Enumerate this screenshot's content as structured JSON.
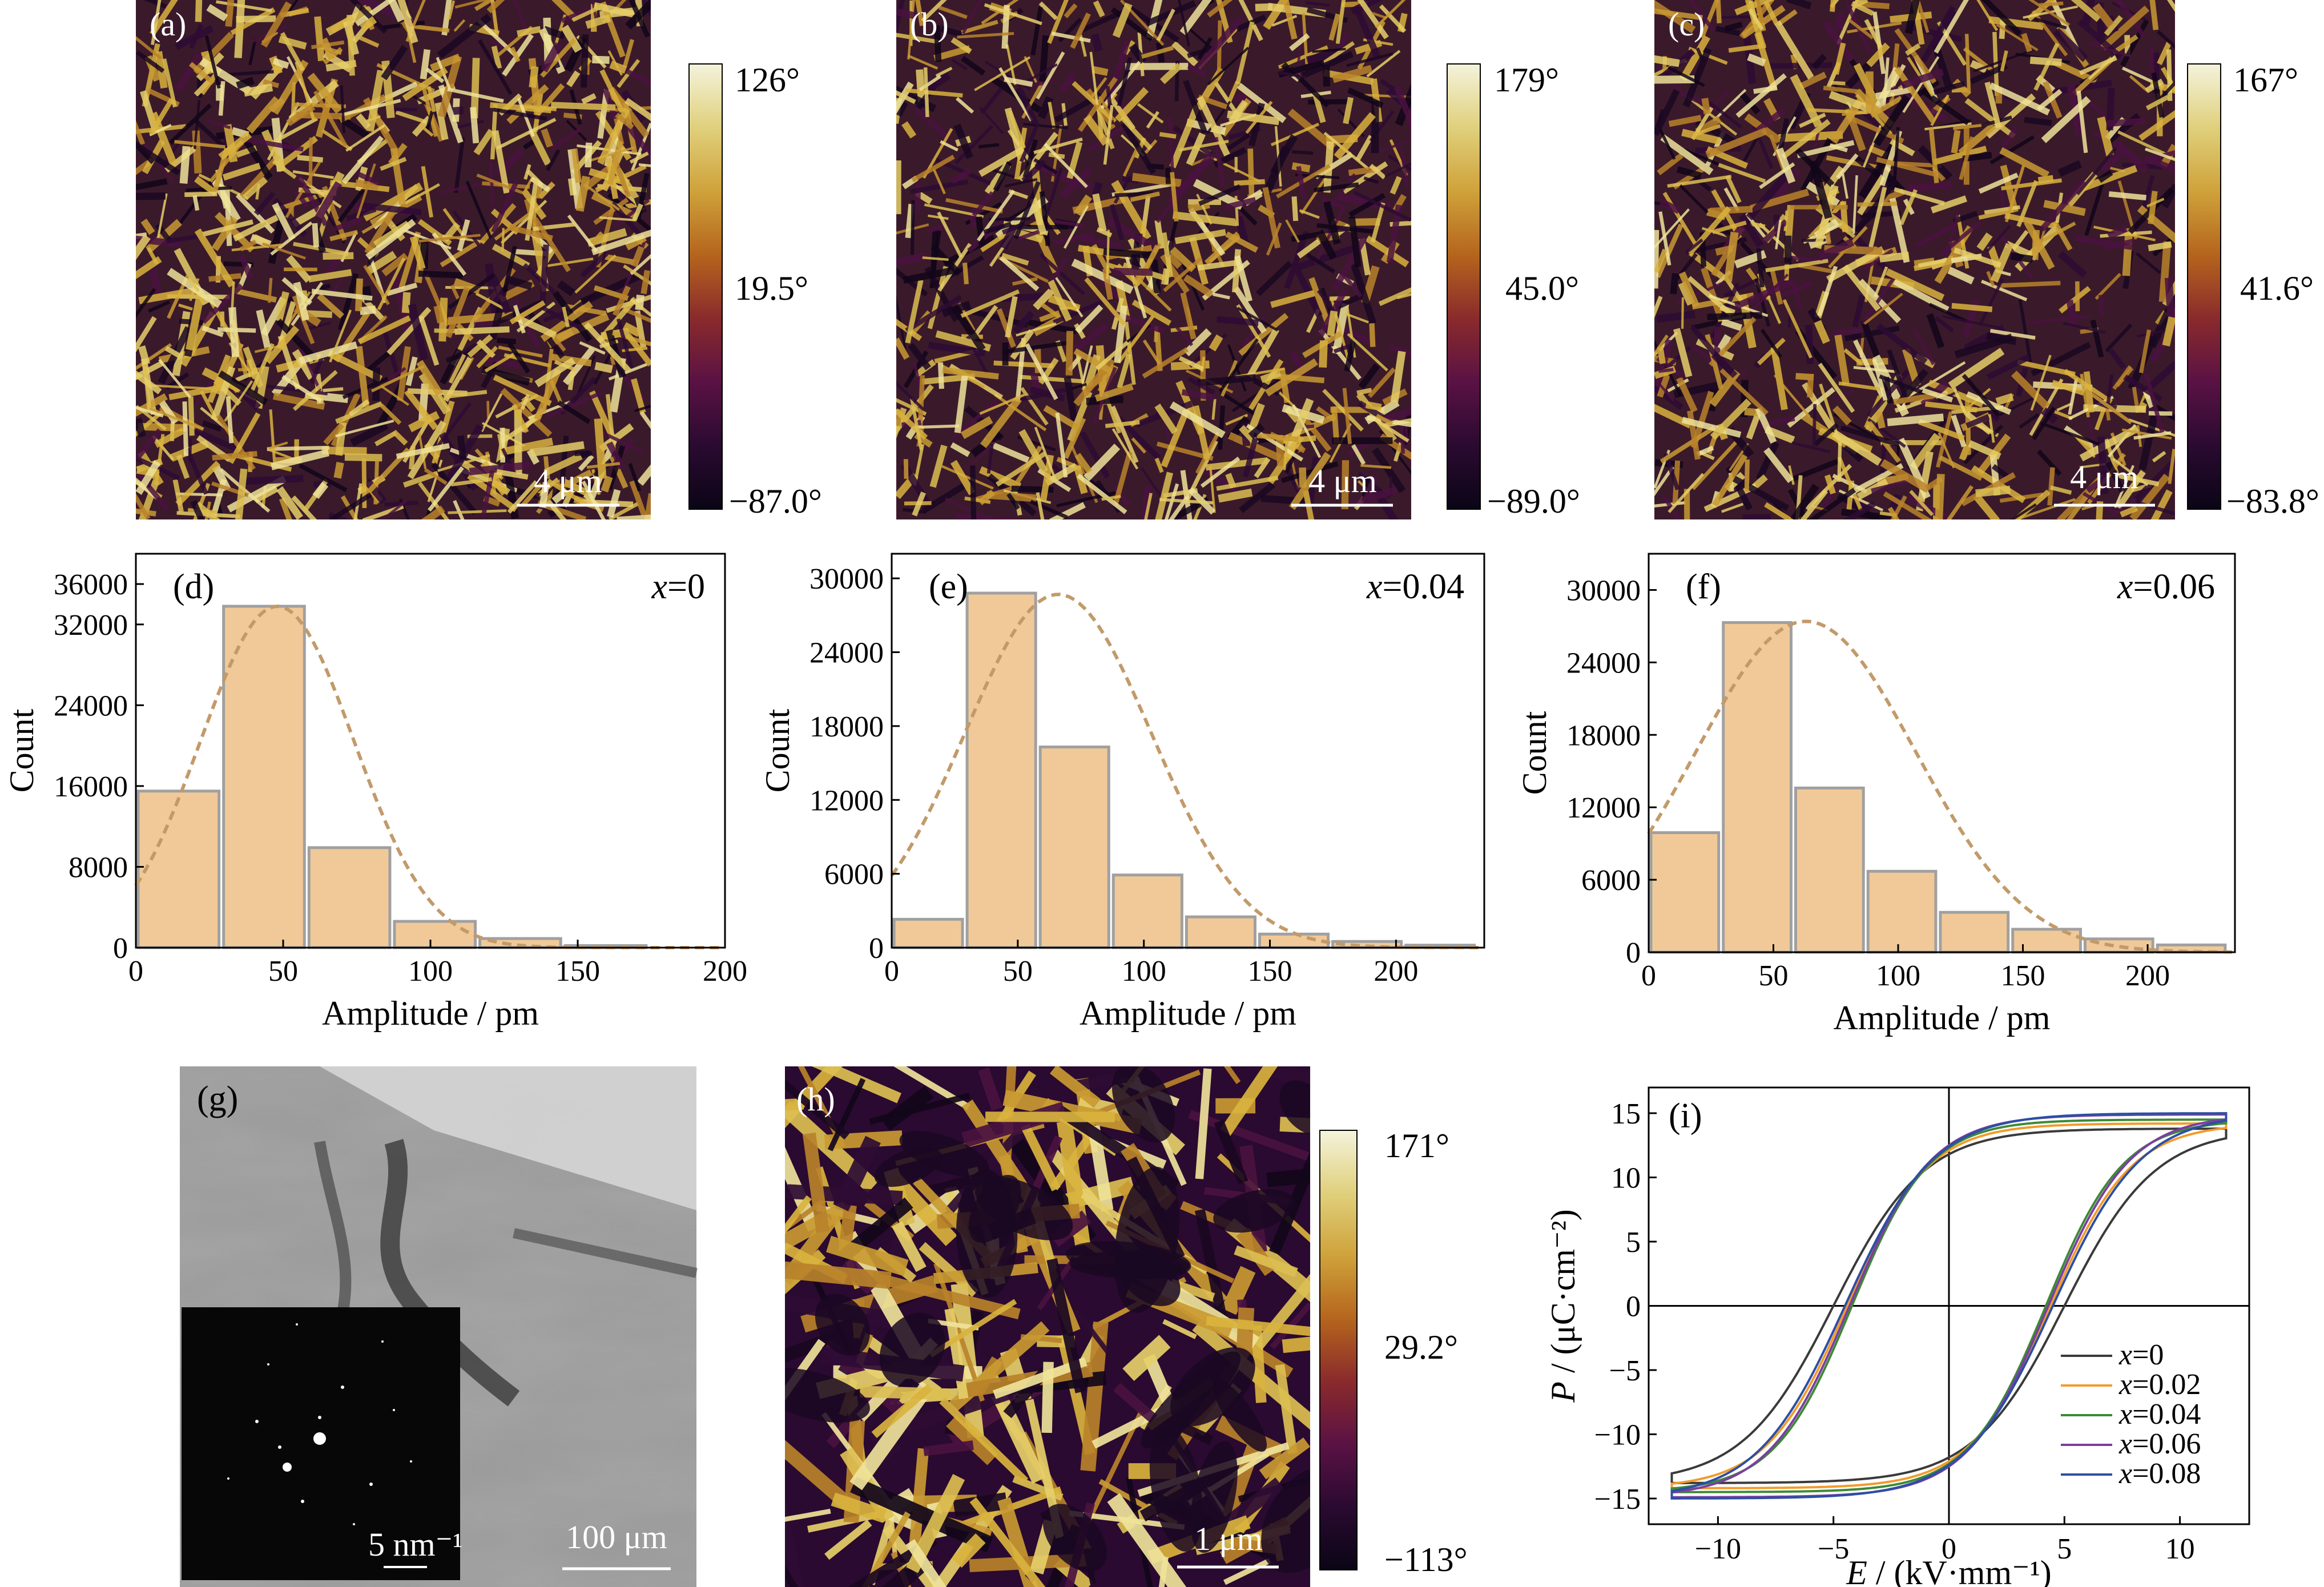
{
  "afm": [
    {
      "id": "a",
      "panel_label": "(a)",
      "scale": "4 μm",
      "cbar": [
        "126°",
        "19.5°",
        "−87.0°"
      ],
      "pattern": "fine"
    },
    {
      "id": "b",
      "panel_label": "(b)",
      "scale": "4 μm",
      "cbar": [
        "179°",
        "45.0°",
        "−89.0°"
      ],
      "pattern": "fine-dark"
    },
    {
      "id": "c",
      "panel_label": "(c)",
      "scale": "4 μm",
      "cbar": [
        "167°",
        "41.6°",
        "−83.8°"
      ],
      "pattern": "fine-dark"
    },
    {
      "id": "h",
      "panel_label": "(h)",
      "scale": "1 μm",
      "cbar": [
        "171°",
        "29.2°",
        "−113°"
      ],
      "pattern": "coarse"
    }
  ],
  "colors": {
    "cmap": [
      "#0b0516",
      "#2a0a30",
      "#5a1244",
      "#8a2a2c",
      "#b5651d",
      "#cfa23a",
      "#e0d07c",
      "#f4f3dc"
    ],
    "bar_fill": "#f1c998",
    "bar_edge": "#a0a0a0",
    "fit_line": "#c29a6a",
    "loop_colors": [
      "#3a3a3a",
      "#f29b2a",
      "#3d8a35",
      "#7a3fa0",
      "#2c4fa3"
    ]
  },
  "tem": {
    "panel_label": "(g)",
    "scale": "100 μm",
    "inset_scale": "5 nm⁻¹"
  },
  "chart_data": [
    {
      "type": "bar",
      "panel_label": "(d)",
      "annotation_var": "x",
      "annotation_val": "=0",
      "xlabel": "Amplitude / pm",
      "ylabel": "Count",
      "bin_edges": [
        0,
        29,
        58,
        87,
        116,
        145,
        174
      ],
      "values": [
        15500,
        33800,
        9900,
        2600,
        900,
        200
      ],
      "fit_mean": 48,
      "fit_sd": 26,
      "fit_peak": 33800,
      "xlim": [
        0,
        200
      ],
      "ylim": [
        0,
        39000
      ],
      "xticks": [
        0,
        50,
        100,
        150,
        200
      ],
      "yticks": [
        0,
        8000,
        16000,
        24000,
        32000,
        36000
      ]
    },
    {
      "type": "bar",
      "panel_label": "(e)",
      "annotation_var": "x",
      "annotation_val": "=0.04",
      "xlabel": "Amplitude / pm",
      "ylabel": "Count",
      "bin_edges": [
        0,
        29,
        58,
        87,
        116,
        145,
        174,
        203,
        232
      ],
      "values": [
        2300,
        28800,
        16300,
        5900,
        2500,
        1100,
        500,
        200
      ],
      "fit_mean": 66,
      "fit_sd": 37,
      "fit_peak": 28700,
      "xlim": [
        0,
        235
      ],
      "ylim": [
        0,
        32000
      ],
      "xticks": [
        0,
        50,
        100,
        150,
        200
      ],
      "yticks": [
        0,
        6000,
        12000,
        18000,
        24000,
        30000
      ]
    },
    {
      "type": "bar",
      "panel_label": "(f)",
      "annotation_var": "x",
      "annotation_val": "=0.06",
      "xlabel": "Amplitude / pm",
      "ylabel": "Count",
      "bin_edges": [
        0,
        29,
        58,
        87,
        116,
        145,
        174,
        203,
        232
      ],
      "values": [
        9900,
        27300,
        13600,
        6700,
        3300,
        1900,
        1100,
        600
      ],
      "fit_mean": 63,
      "fit_sd": 44,
      "fit_peak": 27400,
      "xlim": [
        0,
        235
      ],
      "ylim": [
        0,
        33000
      ],
      "xticks": [
        0,
        50,
        100,
        150,
        200
      ],
      "yticks": [
        0,
        6000,
        12000,
        18000,
        24000,
        30000
      ]
    },
    {
      "type": "line",
      "panel_label": "(i)",
      "xlabel_var": "E",
      "xlabel_unit": " / (kV·mm⁻¹)",
      "ylabel_var": "P",
      "ylabel_unit": " / (μC·cm⁻²)",
      "xlim": [
        -13,
        13
      ],
      "ylim": [
        -17,
        17
      ],
      "xticks": [
        -10,
        -5,
        0,
        5,
        10
      ],
      "yticks": [
        -15,
        -10,
        -5,
        0,
        5,
        10,
        15
      ],
      "series": [
        {
          "name_var": "x",
          "name_val": "=0",
          "Ec": 5.0,
          "Pr": 11.8,
          "Pmax": 13.8,
          "Emax": 12
        },
        {
          "name_var": "x",
          "name_val": "=0.02",
          "Ec": 4.4,
          "Pr": 12.1,
          "Pmax": 14.2,
          "Emax": 12
        },
        {
          "name_var": "x",
          "name_val": "=0.04",
          "Ec": 4.2,
          "Pr": 12.3,
          "Pmax": 14.5,
          "Emax": 12
        },
        {
          "name_var": "x",
          "name_val": "=0.06",
          "Ec": 4.3,
          "Pr": 12.5,
          "Pmax": 14.9,
          "Emax": 12
        },
        {
          "name_var": "x",
          "name_val": "=0.08",
          "Ec": 4.5,
          "Pr": 12.4,
          "Pmax": 15.0,
          "Emax": 12
        }
      ]
    }
  ]
}
